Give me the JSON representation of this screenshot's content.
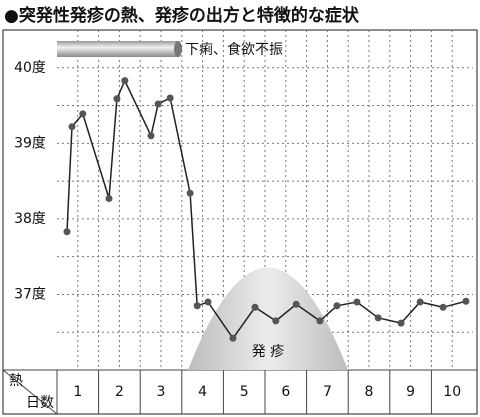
{
  "chart_data": {
    "type": "line",
    "title": "●突発性発疹の熱、発疹の出方と特徴的な症状",
    "symptom_label": "下痢、食欲不振",
    "rash_label": "発 疹",
    "y_header": "熱",
    "x_header": "日数",
    "color": "#222222",
    "x": [
      0.74,
      0.86,
      1.12,
      1.75,
      1.94,
      2.13,
      2.76,
      2.93,
      3.22,
      3.7,
      3.87,
      4.13,
      4.73,
      5.26,
      5.76,
      6.25,
      6.82,
      7.23,
      7.71,
      8.22,
      8.77,
      9.23,
      9.78,
      10.33
    ],
    "values": [
      37.83,
      39.22,
      39.39,
      38.27,
      39.59,
      39.83,
      39.1,
      39.52,
      39.6,
      38.34,
      36.85,
      36.9,
      36.42,
      36.83,
      36.65,
      36.87,
      36.65,
      36.85,
      36.9,
      36.69,
      36.62,
      36.9,
      36.83,
      36.91
    ],
    "xlim": [
      0.5,
      10.5
    ],
    "xticks": [
      1,
      2,
      3,
      4,
      5,
      6,
      7,
      8,
      9,
      10
    ],
    "ylim": [
      36,
      40.5
    ],
    "yticks": [
      {
        "value": 37,
        "label": "37度"
      },
      {
        "value": 38,
        "label": "38度"
      },
      {
        "value": 39,
        "label": "39度"
      },
      {
        "value": 40,
        "label": "40度"
      }
    ],
    "grid": true
  }
}
